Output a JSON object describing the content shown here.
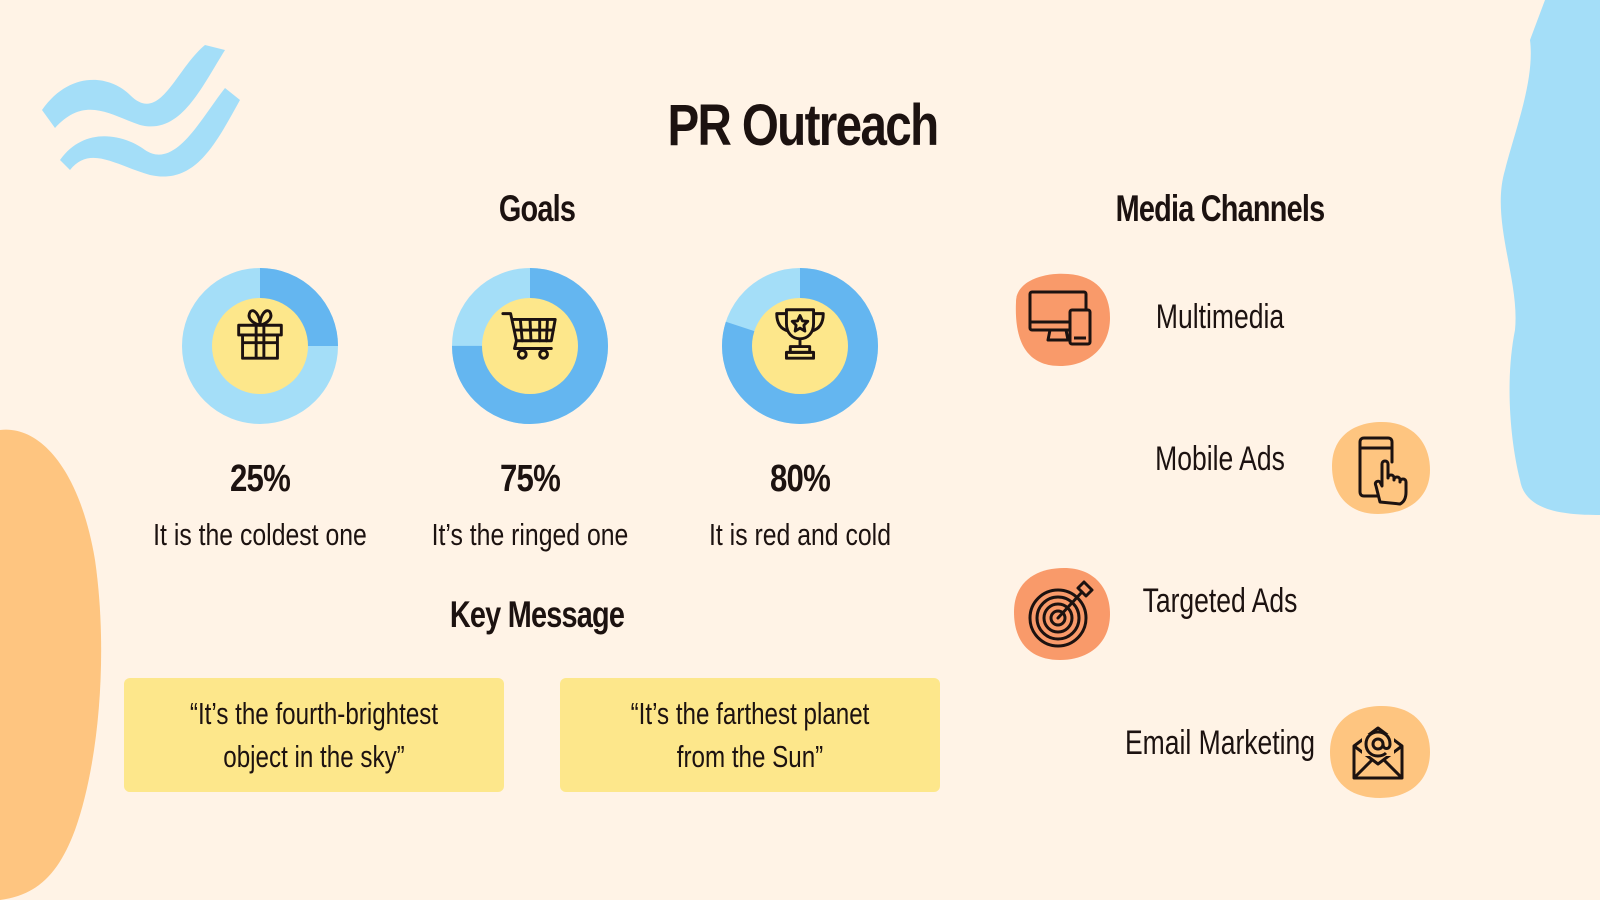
{
  "title": "PR Outreach",
  "goals": {
    "heading": "Goals",
    "items": [
      {
        "percent_label": "25%",
        "description": "It is the coldest one",
        "value": 25,
        "icon": "gift-icon"
      },
      {
        "percent_label": "75%",
        "description": "It’s the ringed one",
        "value": 75,
        "icon": "shopping-cart-icon"
      },
      {
        "percent_label": "80%",
        "description": "It is red and cold",
        "value": 80,
        "icon": "trophy-icon"
      }
    ]
  },
  "key_message": {
    "heading": "Key Message",
    "messages": [
      {
        "line1": "“It’s the fourth-brightest",
        "line2": "object in the sky”"
      },
      {
        "line1": "“It’s the farthest planet",
        "line2": "from the Sun”"
      }
    ]
  },
  "media_channels": {
    "heading": "Media Channels",
    "items": [
      {
        "label": "Multimedia",
        "icon": "monitor-devices-icon"
      },
      {
        "label": "Mobile Ads",
        "icon": "mobile-touch-icon"
      },
      {
        "label": "Targeted Ads",
        "icon": "target-icon"
      },
      {
        "label": "Email Marketing",
        "icon": "email-icon"
      }
    ]
  },
  "colors": {
    "background": "#fff3e6",
    "donut_light": "#a4def8",
    "donut_dark": "#64b6f0",
    "donut_center": "#fde78b",
    "channel_orange": "#f99a6a",
    "channel_peach": "#fec580",
    "message_box": "#fde78b",
    "text": "#1c1210"
  }
}
